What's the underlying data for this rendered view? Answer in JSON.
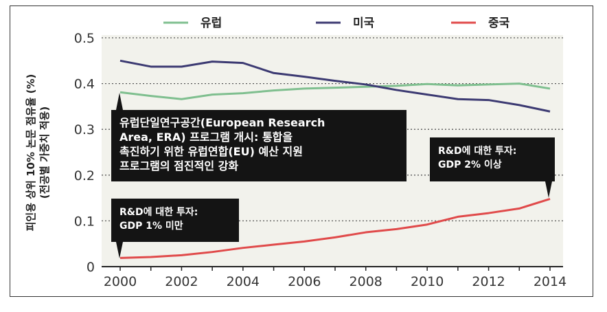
{
  "chart_data": {
    "type": "line",
    "x": [
      2000,
      2001,
      2002,
      2003,
      2004,
      2005,
      2006,
      2007,
      2008,
      2009,
      2010,
      2011,
      2012,
      2013,
      2014
    ],
    "series": [
      {
        "name": "유럽",
        "color": "#7fbf8f",
        "values": [
          0.381,
          0.373,
          0.366,
          0.376,
          0.379,
          0.385,
          0.389,
          0.391,
          0.393,
          0.395,
          0.399,
          0.396,
          0.398,
          0.4,
          0.389
        ]
      },
      {
        "name": "미국",
        "color": "#3c3a72",
        "values": [
          0.45,
          0.437,
          0.437,
          0.448,
          0.445,
          0.423,
          0.415,
          0.406,
          0.398,
          0.386,
          0.376,
          0.366,
          0.364,
          0.353,
          0.339
        ]
      },
      {
        "name": "중국",
        "color": "#e04a4a",
        "values": [
          0.019,
          0.021,
          0.025,
          0.032,
          0.041,
          0.048,
          0.055,
          0.064,
          0.075,
          0.082,
          0.092,
          0.109,
          0.117,
          0.127,
          0.148
        ]
      }
    ],
    "ylabel_line1": "피인용 상위 10% 논문 점유율 (%)",
    "ylabel_line2": "(전공별 가중치 적용)",
    "ylim": [
      0,
      0.5
    ],
    "yticks": [
      "0",
      "0.1",
      "0.2",
      "0.3",
      "0.4",
      "0.5"
    ],
    "yticks_values": [
      0,
      0.1,
      0.2,
      0.3,
      0.4,
      0.5
    ],
    "xticks": [
      "2000",
      "2002",
      "2004",
      "2006",
      "2008",
      "2010",
      "2012",
      "2014"
    ],
    "grid": "horizontal dotted",
    "legend_position": "top",
    "annotations": [
      {
        "lines": [
          "유럽단일연구공간(European Research",
          "Area, ERA) 프로그램 개시: 통합을",
          "촉진하기 위한 유럽연합(EU) 예산 지원",
          "프로그램의 점진적인 강화"
        ]
      },
      {
        "lines": [
          "R&D에 대한 투자:",
          "GDP 1% 미만"
        ]
      },
      {
        "lines": [
          "R&D에 대한 투자:",
          "GDP 2% 이상"
        ]
      }
    ]
  }
}
